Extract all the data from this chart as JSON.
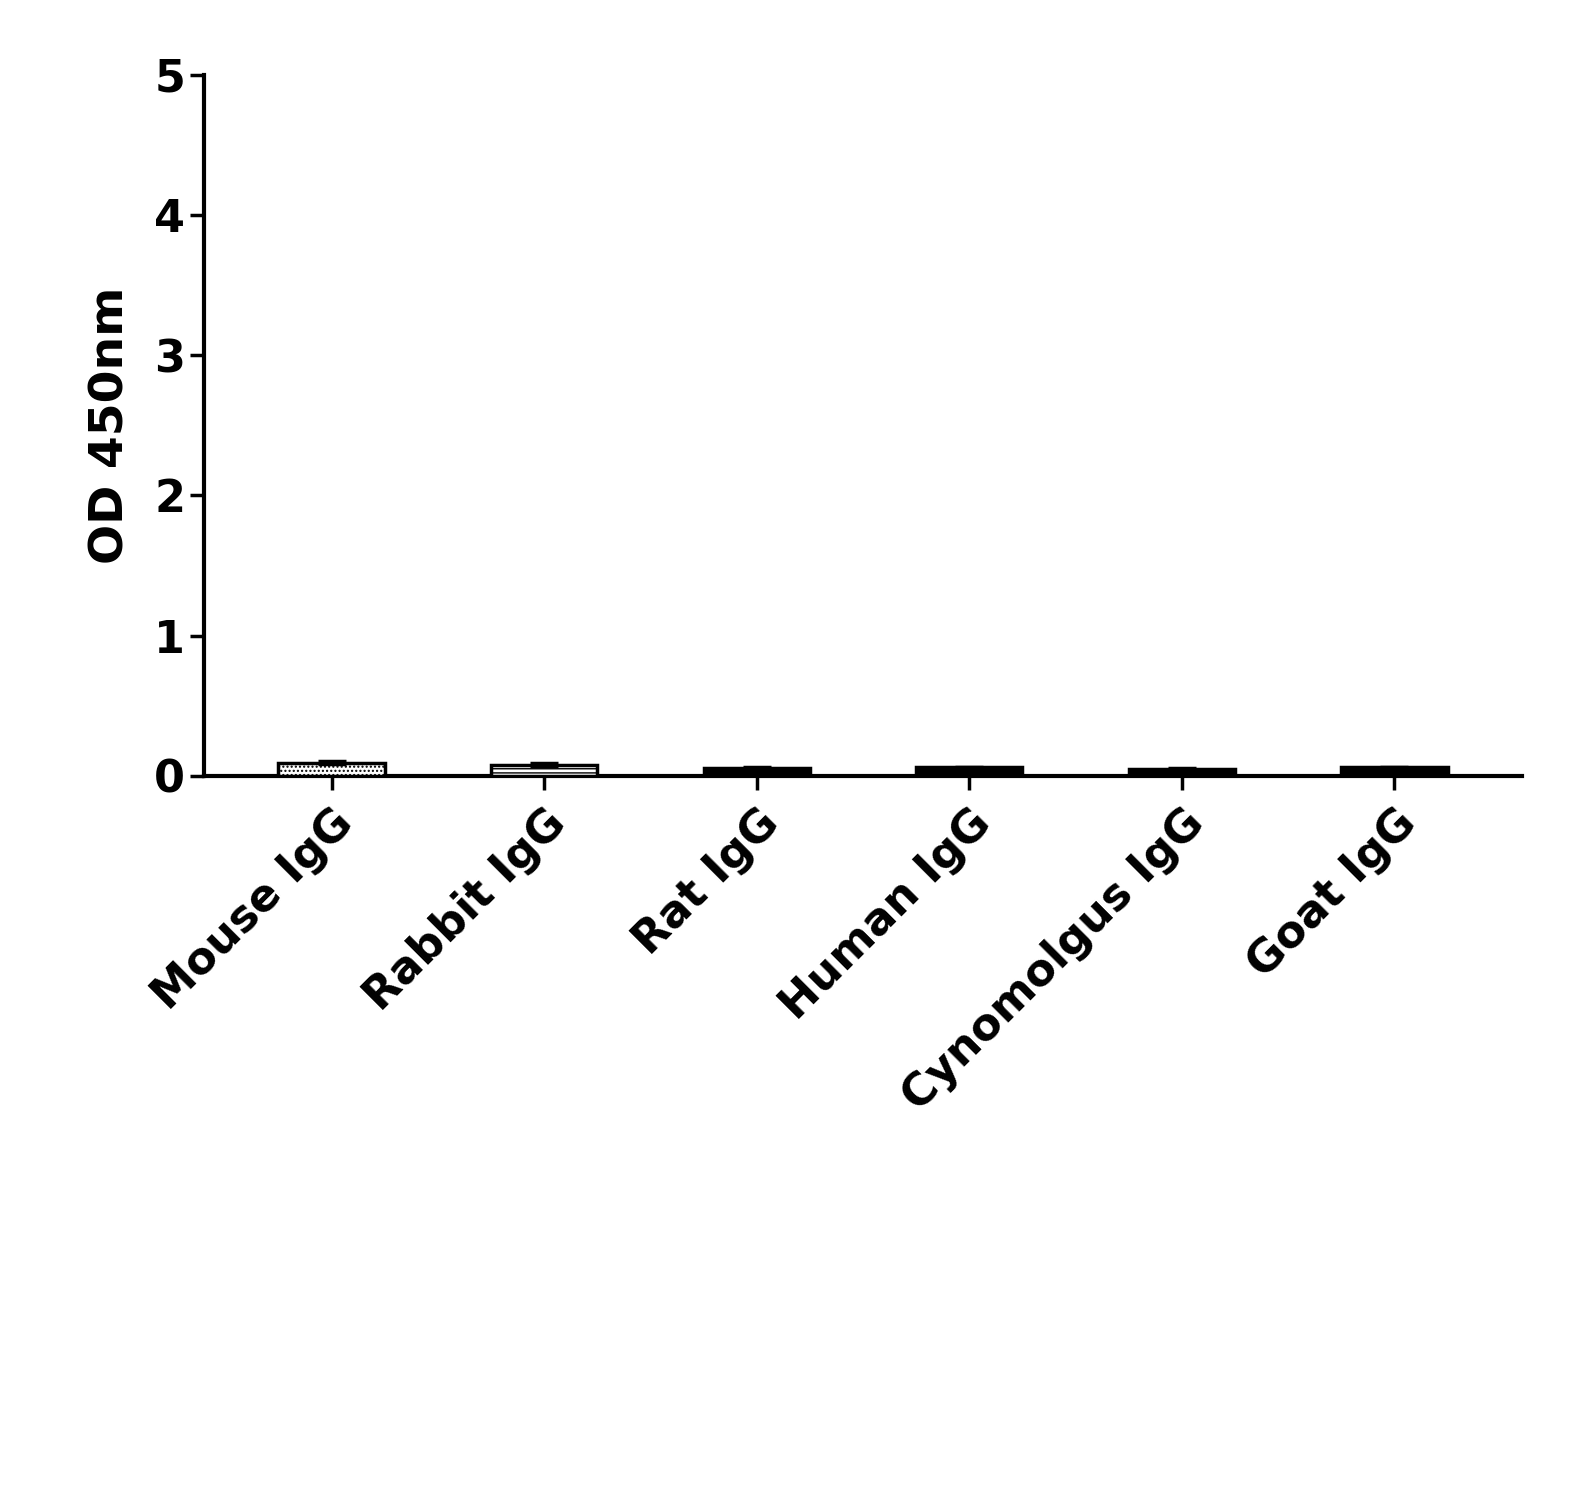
{
  "categories": [
    "Mouse IgG",
    "Rabbit IgG",
    "Rat IgG",
    "Human IgG",
    "Cynomolgus IgG",
    "Goat IgG"
  ],
  "values": [
    0.095,
    0.08,
    0.055,
    0.06,
    0.05,
    0.06
  ],
  "errors": [
    0.01,
    0.008,
    0.005,
    0.006,
    0.005,
    0.006
  ],
  "bar_color": "#000000",
  "ylabel": "OD 450nm",
  "ylim": [
    0,
    5
  ],
  "yticks": [
    0,
    1,
    2,
    3,
    4,
    5
  ],
  "bar_width": 0.5,
  "background_color": "#ffffff",
  "ylabel_fontsize": 34,
  "tick_fontsize": 32,
  "xlabel_fontsize": 32,
  "spine_linewidth": 3.0,
  "tick_linewidth": 2.5,
  "error_capsize": 10,
  "error_linewidth": 2.5,
  "hatch_patterns": [
    "....",
    "----",
    "",
    "",
    "",
    ""
  ],
  "face_colors": [
    "white",
    "white",
    "black",
    "black",
    "black",
    "black"
  ]
}
